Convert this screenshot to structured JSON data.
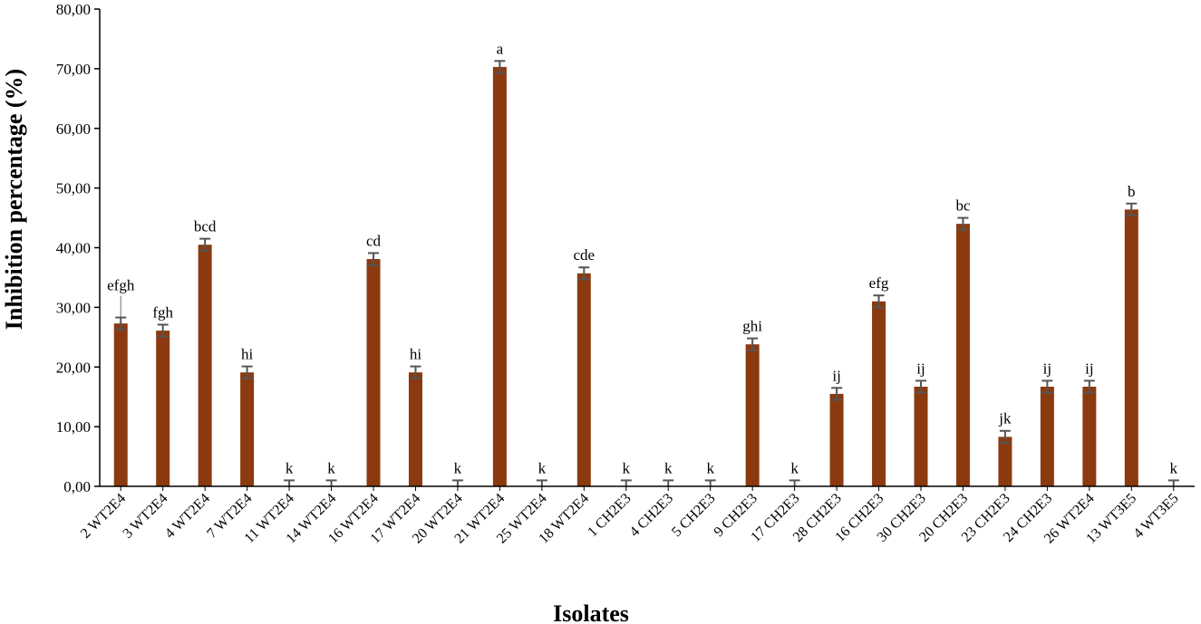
{
  "chart_data": {
    "type": "bar",
    "title": "",
    "xlabel": "Isolates",
    "ylabel": "Inhibition percentage (%)",
    "ylim": [
      0,
      80
    ],
    "yticks": [
      "0,00",
      "10,00",
      "20,00",
      "30,00",
      "40,00",
      "50,00",
      "60,00",
      "70,00",
      "80,00"
    ],
    "grid": false,
    "bar_color": "#8B3A0F",
    "error_color": "#555555",
    "categories": [
      "2 WT2E4",
      "3 WT2E4",
      "4 WT2E4",
      "7 WT2E4",
      "11 WT2E4",
      "14 WT2E4",
      "16 WT2E4",
      "17 WT2E4",
      "20 WT2E4",
      "21 WT2E4",
      "25 WT2E4",
      "18 WT2E4",
      "1 CH2E3",
      "4 CH2E3",
      "5 CH2E3",
      "9 CH2E3",
      "17 CH2E3",
      "28 CH2E3",
      "16 CH2E3",
      "30 CH2E3",
      "20 CH2E3",
      "23 CH2E3",
      "24 CH2E3",
      "26 WT2E4",
      "13 WT3E5",
      "4 WT3E5"
    ],
    "values": [
      27.3,
      26.1,
      40.5,
      19.1,
      0,
      0,
      38.1,
      19.1,
      0,
      70.3,
      0,
      35.7,
      0,
      0,
      0,
      23.8,
      0,
      15.5,
      31.0,
      16.7,
      44.0,
      8.3,
      16.7,
      16.7,
      46.4,
      0
    ],
    "errors": [
      1.0,
      1.0,
      1.0,
      1.0,
      1.0,
      1.0,
      1.0,
      1.0,
      1.0,
      1.0,
      1.0,
      1.0,
      1.0,
      1.0,
      1.0,
      1.0,
      1.0,
      1.0,
      1.0,
      1.0,
      1.0,
      1.0,
      1.0,
      1.0,
      1.0,
      1.0
    ],
    "letters": [
      "efgh",
      "fgh",
      "bcd",
      "hi",
      "k",
      "k",
      "cd",
      "hi",
      "k",
      "a",
      "k",
      "cde",
      "k",
      "k",
      "k",
      "ghi",
      "k",
      "ij",
      "efg",
      "ij",
      "bc",
      "jk",
      "ij",
      "ij",
      "b",
      "k"
    ]
  }
}
